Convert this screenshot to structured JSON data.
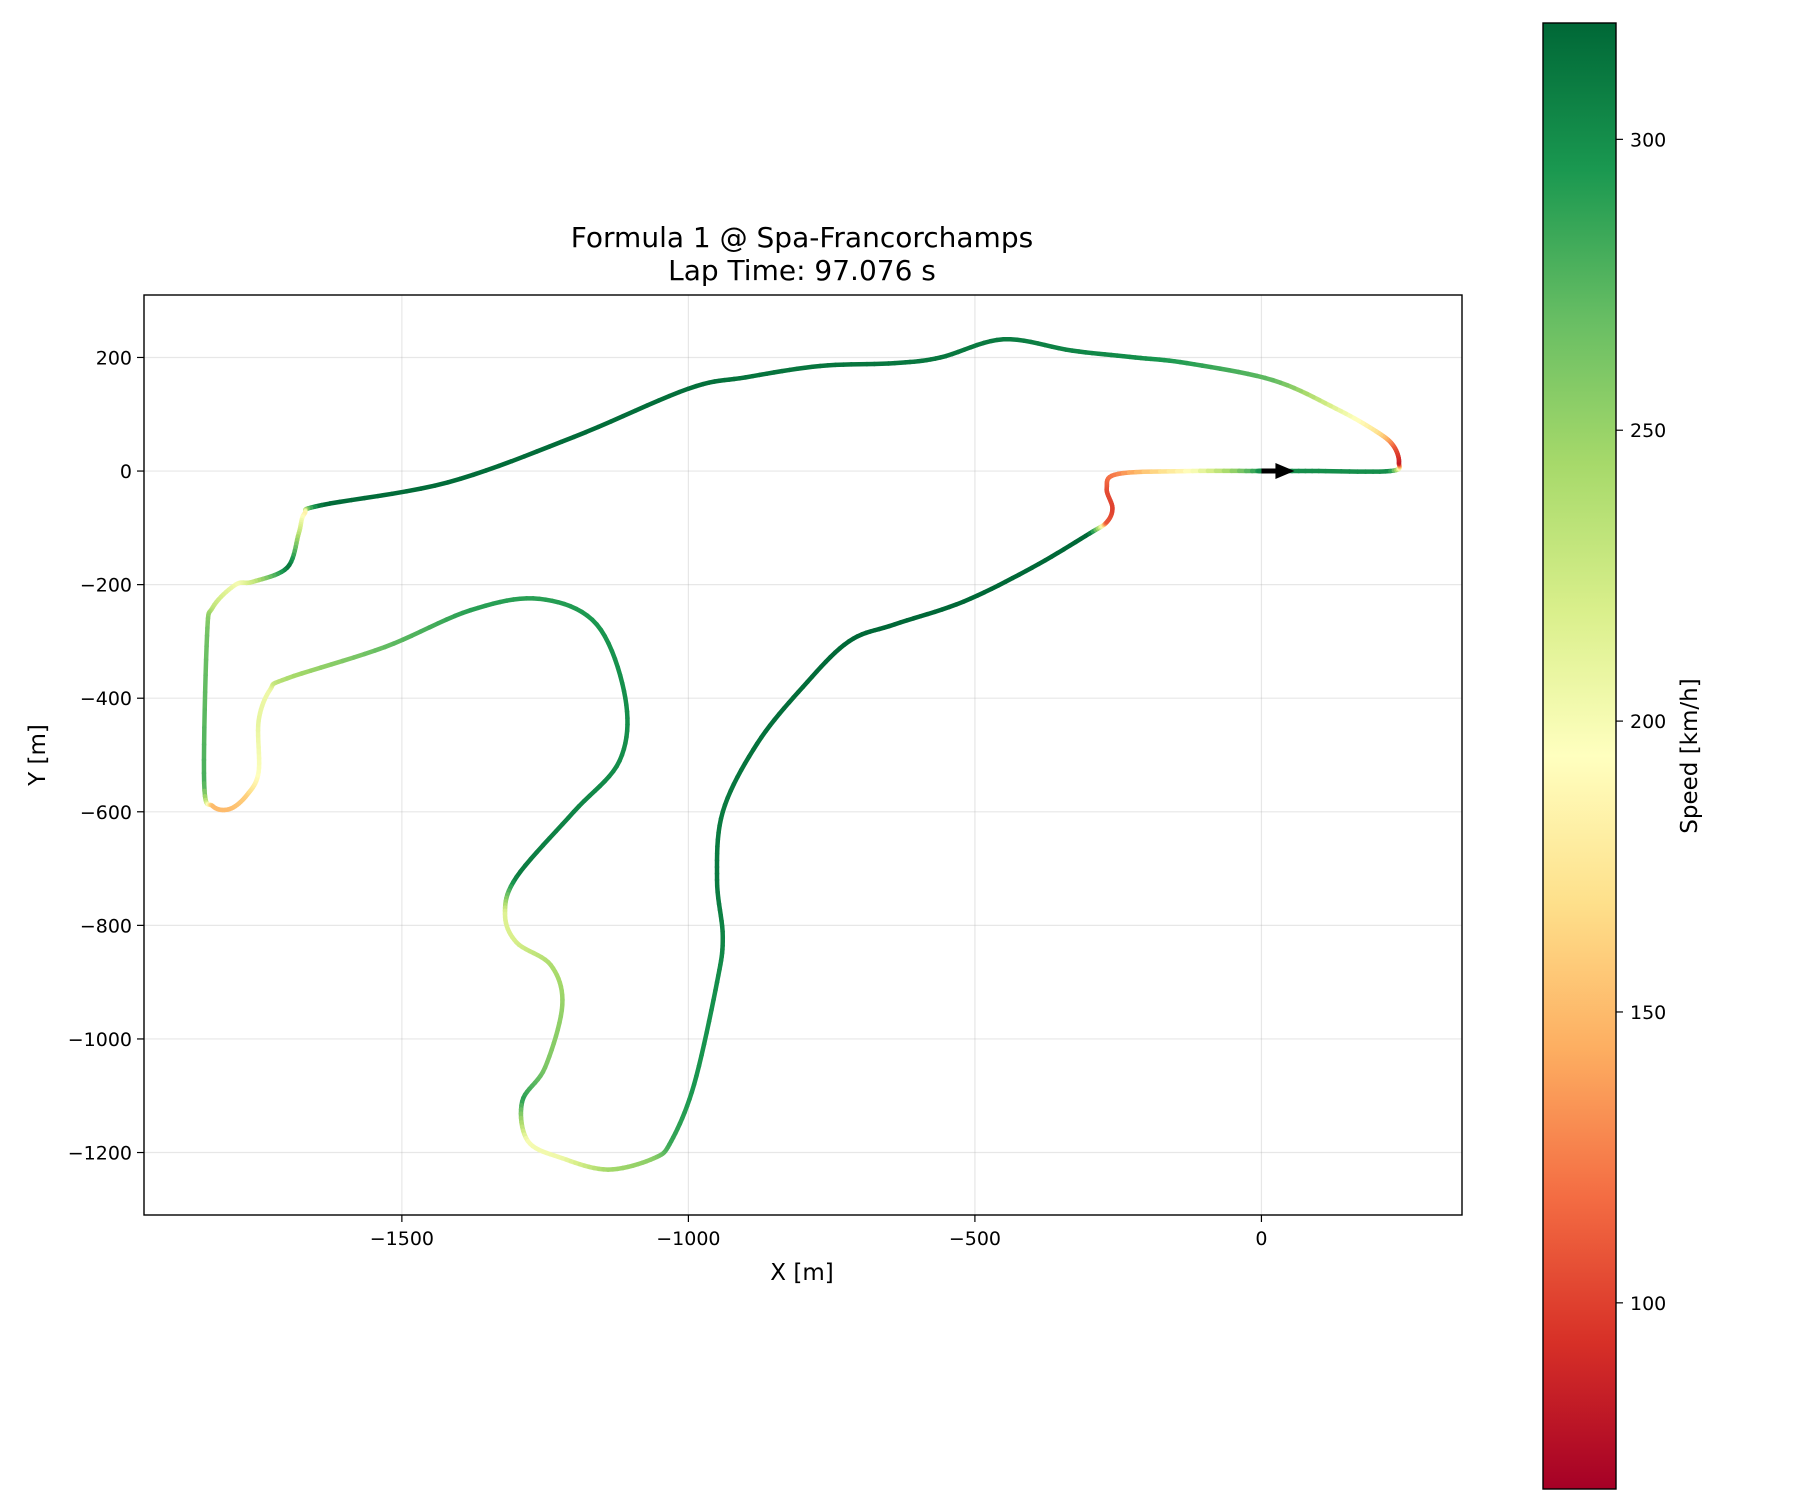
{
  "chart_data": {
    "type": "line",
    "title": "Formula 1 @ Spa-Francorchamps",
    "subtitle": "Lap Time: 97.076 s",
    "xlabel": "X [m]",
    "ylabel": "Y [m]",
    "xlim": [
      -1950,
      350
    ],
    "ylim": [
      -1310,
      310
    ],
    "xticks": [
      -1500,
      -1000,
      -500,
      0
    ],
    "yticks": [
      200,
      0,
      -200,
      -400,
      -600,
      -800,
      -1000,
      -1200
    ],
    "xtick_labels": [
      "−1500",
      "−1000",
      "−500",
      "0"
    ],
    "ytick_labels": [
      "200",
      "0",
      "−200",
      "−400",
      "−600",
      "−800",
      "−1000",
      "−1200"
    ],
    "grid": true,
    "colorbar": {
      "label": "Speed [km/h]",
      "range": [
        68,
        320
      ],
      "ticks": [
        100,
        150,
        200,
        250,
        300
      ],
      "tick_labels": [
        "100",
        "150",
        "200",
        "250",
        "300"
      ],
      "colormap": [
        "#a50026",
        "#d73027",
        "#f46d43",
        "#fdae61",
        "#fee08b",
        "#ffffbf",
        "#d9ef8b",
        "#a6d96a",
        "#66bd63",
        "#1a9850",
        "#006837"
      ]
    },
    "start_marker": {
      "x": 0,
      "y": 0,
      "direction": "+x",
      "color": "#000000"
    },
    "track": {
      "x": [
        0,
        100,
        225,
        240,
        230,
        200,
        130,
        20,
        -130,
        -220,
        -330,
        -450,
        -560,
        -640,
        -770,
        -900,
        -1000,
        -1200,
        -1420,
        -1640,
        -1670,
        -1680,
        -1700,
        -1760,
        -1790,
        -1830,
        -1840,
        -1845,
        -1830,
        -1800,
        -1770,
        -1750,
        -1750,
        -1730,
        -1700,
        -1530,
        -1380,
        -1260,
        -1160,
        -1110,
        -1120,
        -1200,
        -1300,
        -1320,
        -1300,
        -1240,
        -1220,
        -1250,
        -1290,
        -1280,
        -1220,
        -1140,
        -1060,
        -1030,
        -990,
        -950,
        -940,
        -950,
        -940,
        -880,
        -800,
        -720,
        -640,
        -520,
        -400,
        -300,
        -270,
        -260,
        -270,
        -250,
        -120,
        0
      ],
      "y": [
        0,
        0,
        0,
        15,
        45,
        70,
        110,
        160,
        190,
        200,
        212,
        232,
        200,
        190,
        185,
        165,
        145,
        60,
        -20,
        -60,
        -75,
        -110,
        -170,
        -195,
        -200,
        -240,
        -290,
        -550,
        -590,
        -595,
        -570,
        -530,
        -440,
        -385,
        -365,
        -310,
        -245,
        -225,
        -270,
        -400,
        -510,
        -600,
        -715,
        -780,
        -830,
        -870,
        -940,
        -1050,
        -1110,
        -1180,
        -1210,
        -1230,
        -1210,
        -1180,
        -1080,
        -900,
        -820,
        -720,
        -600,
        -480,
        -380,
        -300,
        -270,
        -230,
        -170,
        -110,
        -90,
        -65,
        -30,
        -5,
        0,
        0
      ],
      "speed": [
        300,
        300,
        300,
        80,
        110,
        170,
        210,
        270,
        290,
        300,
        305,
        310,
        312,
        312,
        313,
        314,
        316,
        318,
        318,
        318,
        180,
        230,
        315,
        230,
        200,
        230,
        265,
        280,
        150,
        150,
        160,
        195,
        210,
        205,
        240,
        270,
        290,
        290,
        295,
        300,
        300,
        305,
        310,
        215,
        220,
        240,
        250,
        260,
        290,
        200,
        205,
        245,
        255,
        285,
        295,
        300,
        305,
        310,
        310,
        315,
        318,
        320,
        320,
        320,
        320,
        320,
        110,
        100,
        105,
        125,
        195,
        300
      ]
    }
  }
}
